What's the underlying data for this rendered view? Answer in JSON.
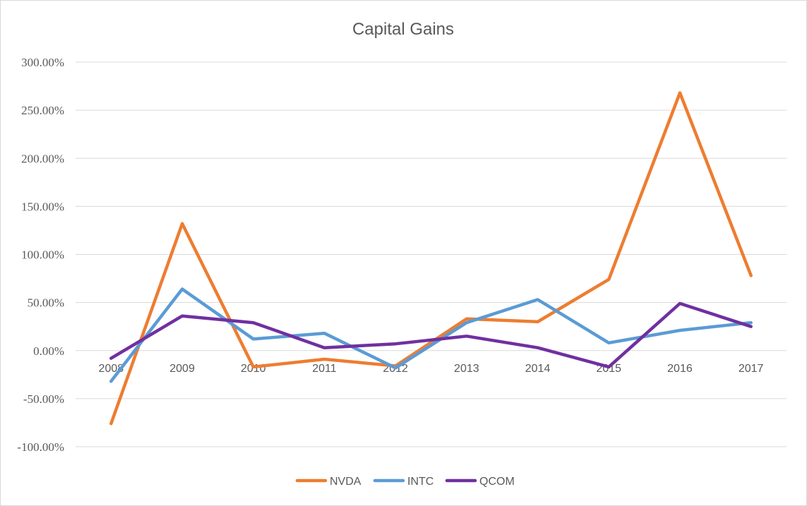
{
  "chart_data": {
    "type": "line",
    "title": "Capital Gains",
    "xlabel": "",
    "ylabel": "",
    "categories": [
      "2008",
      "2009",
      "2010",
      "2011",
      "2012",
      "2013",
      "2014",
      "2015",
      "2016",
      "2017"
    ],
    "y_ticks": [
      "300.00%",
      "250.00%",
      "200.00%",
      "150.00%",
      "100.00%",
      "50.00%",
      "0.00%",
      "-50.00%",
      "-100.00%"
    ],
    "ylim": [
      -100,
      300
    ],
    "grid": true,
    "legend_position": "bottom",
    "series": [
      {
        "name": "NVDA",
        "color": "#ED7D31",
        "values": [
          -76,
          132,
          -17,
          -9,
          -16,
          33,
          30,
          74,
          268,
          78
        ]
      },
      {
        "name": "INTC",
        "color": "#5B9BD5",
        "values": [
          -32,
          64,
          12,
          18,
          -18,
          29,
          53,
          8,
          21,
          29
        ]
      },
      {
        "name": "QCOM",
        "color": "#7030A0",
        "values": [
          -8,
          36,
          29,
          3,
          7,
          15,
          3,
          -17,
          49,
          25
        ]
      }
    ]
  }
}
